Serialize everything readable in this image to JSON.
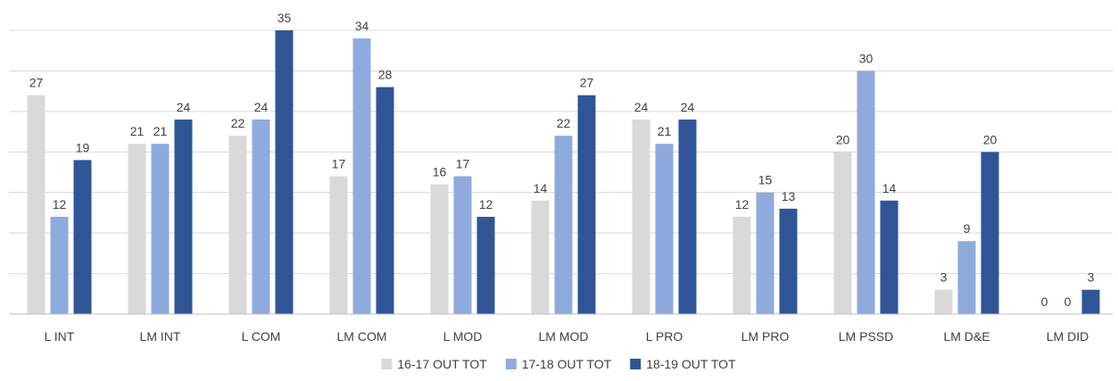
{
  "chart_data": {
    "type": "bar",
    "title": "",
    "xlabel": "",
    "ylabel": "",
    "ylim": [
      0,
      35
    ],
    "grid": true,
    "legend_position": "bottom",
    "categories": [
      "L INT",
      "LM INT",
      "L COM",
      "LM COM",
      "L MOD",
      "LM MOD",
      "L PRO",
      "LM PRO",
      "LM PSSD",
      "LM D&E",
      "LM DID"
    ],
    "series": [
      {
        "name": "16-17 OUT TOT",
        "color": "#d9d9d9",
        "values": [
          27,
          21,
          22,
          17,
          16,
          14,
          24,
          12,
          20,
          3,
          0
        ]
      },
      {
        "name": "17-18 OUT TOT",
        "color": "#8faadc",
        "values": [
          12,
          21,
          24,
          34,
          17,
          22,
          21,
          15,
          30,
          9,
          0
        ]
      },
      {
        "name": "18-19 OUT TOT",
        "color": "#2f5597",
        "values": [
          19,
          24,
          35,
          28,
          12,
          27,
          24,
          13,
          14,
          20,
          3
        ]
      }
    ]
  }
}
